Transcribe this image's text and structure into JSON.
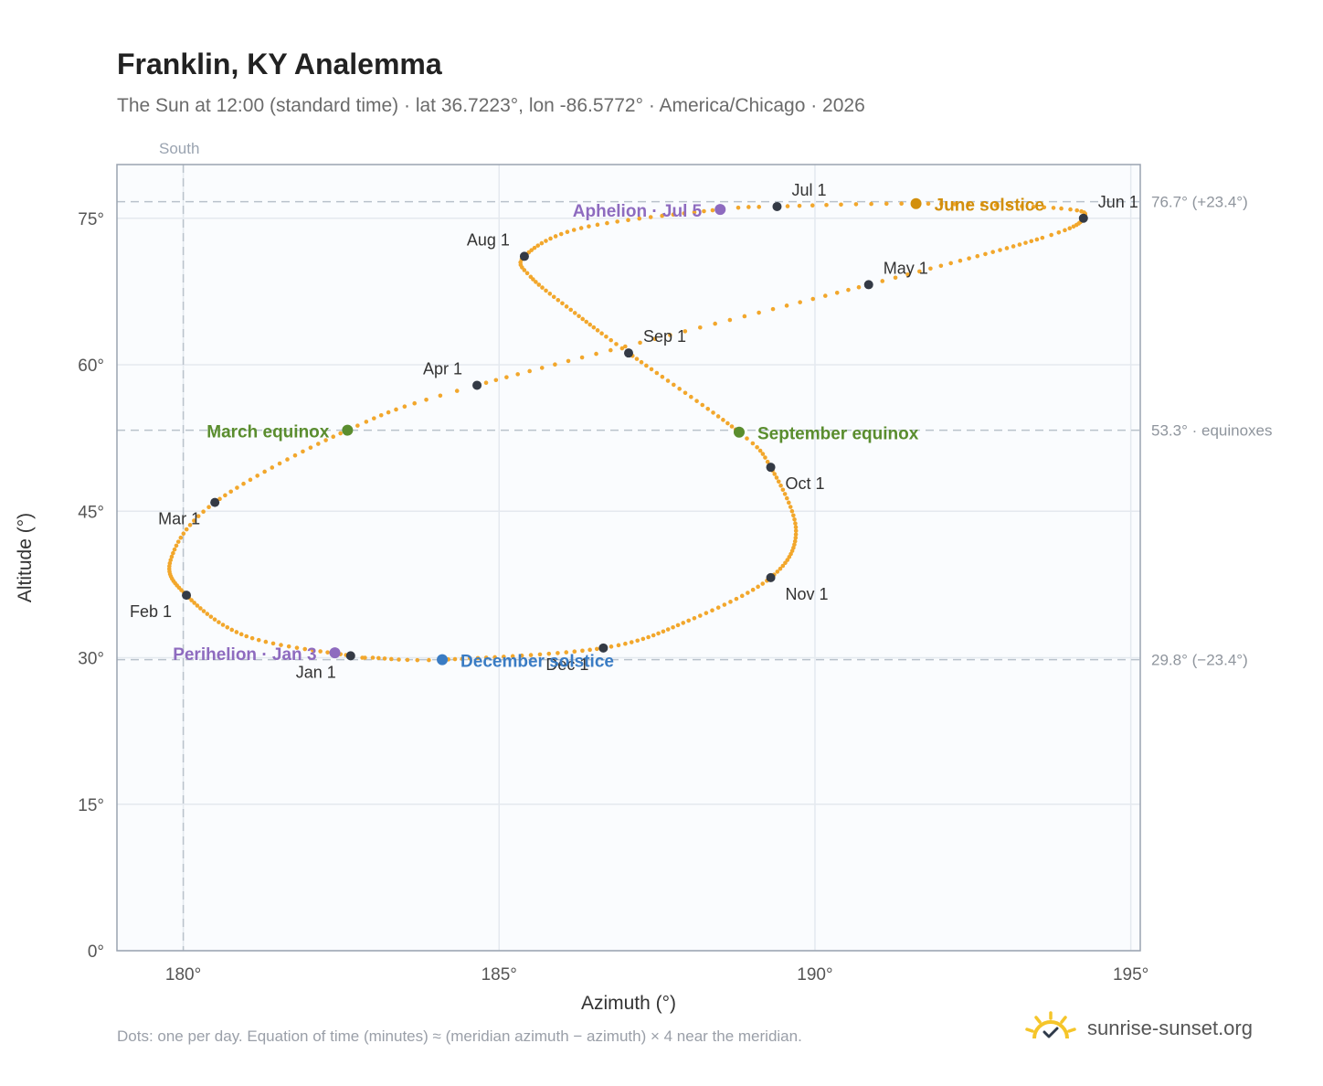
{
  "title": "Franklin, KY Analemma",
  "subtitle": "The Sun at 12:00 (standard time) · lat 36.7223°, lon -86.5772° · America/Chicago · 2026",
  "footnote": "Dots: one per day. Equation of time (minutes) ≈ (meridian azimuth − azimuth) × 4 near the meridian.",
  "brand": {
    "name": "sunrise-sunset.org",
    "icon": "sun-logo-icon"
  },
  "colors": {
    "path": "#f2a72c",
    "month_marker": "#343a45",
    "equinox": "#5a8d2e",
    "june_solstice": "#d28f0c",
    "december_solstice": "#3a7cc4",
    "apsis": "#8e6bbf",
    "grid": "#e4e9ef",
    "plot_bg": "#fafcfe",
    "frame": "#9aa3b0",
    "reference_line": "#b9c2cb"
  },
  "chart_data": {
    "type": "scatter",
    "xlabel": "Azimuth (°)",
    "ylabel": "Altitude (°)",
    "xlim": [
      178.95,
      195.15
    ],
    "ylim": [
      0,
      80.5
    ],
    "xticks": [
      180,
      185,
      190,
      195
    ],
    "yticks": [
      0,
      15,
      30,
      45,
      60,
      75
    ],
    "x_tick_labels": [
      "180°",
      "185°",
      "190°",
      "195°"
    ],
    "y_tick_labels": [
      "0°",
      "15°",
      "30°",
      "45°",
      "60°",
      "75°"
    ],
    "grid": true,
    "south_line": {
      "x": 180,
      "label": "South"
    },
    "reference_lines": [
      {
        "y": 76.7,
        "label": "76.7° (+23.4°)"
      },
      {
        "y": 53.3,
        "label": "53.3° · equinoxes"
      },
      {
        "y": 29.8,
        "label": "29.8° (−23.4°)"
      }
    ],
    "path_keypoints": [
      {
        "day": 1,
        "az": 182.65,
        "alt": 30.2
      },
      {
        "day": 16,
        "az": 181.0,
        "alt": 32.2
      },
      {
        "day": 32,
        "az": 180.05,
        "alt": 36.4
      },
      {
        "day": 46,
        "az": 179.8,
        "alt": 40.0
      },
      {
        "day": 60,
        "az": 180.5,
        "alt": 45.9
      },
      {
        "day": 79,
        "az": 182.6,
        "alt": 53.3
      },
      {
        "day": 91,
        "az": 184.65,
        "alt": 57.9
      },
      {
        "day": 121,
        "az": 190.85,
        "alt": 68.2
      },
      {
        "day": 141,
        "az": 193.6,
        "alt": 73.0
      },
      {
        "day": 152,
        "az": 194.25,
        "alt": 75.0
      },
      {
        "day": 160,
        "az": 193.9,
        "alt": 76.0
      },
      {
        "day": 172,
        "az": 191.6,
        "alt": 76.5
      },
      {
        "day": 182,
        "az": 189.4,
        "alt": 76.2
      },
      {
        "day": 186,
        "az": 188.5,
        "alt": 75.9
      },
      {
        "day": 200,
        "az": 186.3,
        "alt": 74.0
      },
      {
        "day": 213,
        "az": 185.4,
        "alt": 71.1
      },
      {
        "day": 220,
        "az": 185.5,
        "alt": 69.0
      },
      {
        "day": 232,
        "az": 186.2,
        "alt": 65.3
      },
      {
        "day": 244,
        "az": 187.05,
        "alt": 61.2
      },
      {
        "day": 266,
        "az": 188.8,
        "alt": 53.1
      },
      {
        "day": 274,
        "az": 189.3,
        "alt": 49.5
      },
      {
        "day": 290,
        "az": 189.7,
        "alt": 43.0
      },
      {
        "day": 305,
        "az": 189.3,
        "alt": 38.2
      },
      {
        "day": 320,
        "az": 188.0,
        "alt": 33.8
      },
      {
        "day": 335,
        "az": 186.65,
        "alt": 31.0
      },
      {
        "day": 355,
        "az": 184.1,
        "alt": 29.8
      },
      {
        "day": 363,
        "az": 183.0,
        "alt": 30.0
      },
      {
        "day": 366,
        "az": 182.65,
        "alt": 30.2
      }
    ],
    "month_markers": [
      {
        "label": "Jan 1",
        "az": 182.65,
        "alt": 30.2,
        "anchor": "end",
        "dx": -16,
        "dy": 24
      },
      {
        "label": "Feb 1",
        "az": 180.05,
        "alt": 36.4,
        "anchor": "end",
        "dx": -16,
        "dy": 24
      },
      {
        "label": "Mar 1",
        "az": 180.5,
        "alt": 45.9,
        "anchor": "end",
        "dx": -16,
        "dy": 24
      },
      {
        "label": "Apr 1",
        "az": 184.65,
        "alt": 57.9,
        "anchor": "end",
        "dx": -16,
        "dy": -12
      },
      {
        "label": "May 1",
        "az": 190.85,
        "alt": 68.2,
        "anchor": "start",
        "dx": 16,
        "dy": -12
      },
      {
        "label": "Jun 1",
        "az": 194.25,
        "alt": 75.0,
        "anchor": "start",
        "dx": 16,
        "dy": -12
      },
      {
        "label": "Jul 1",
        "az": 189.4,
        "alt": 76.2,
        "anchor": "start",
        "dx": 16,
        "dy": -12
      },
      {
        "label": "Aug 1",
        "az": 185.4,
        "alt": 71.1,
        "anchor": "end",
        "dx": -16,
        "dy": -12
      },
      {
        "label": "Sep 1",
        "az": 187.05,
        "alt": 61.2,
        "anchor": "start",
        "dx": 16,
        "dy": -12
      },
      {
        "label": "Oct 1",
        "az": 189.3,
        "alt": 49.5,
        "anchor": "start",
        "dx": 16,
        "dy": 24
      },
      {
        "label": "Nov 1",
        "az": 189.3,
        "alt": 38.2,
        "anchor": "start",
        "dx": 16,
        "dy": 24
      },
      {
        "label": "Dec 1",
        "az": 186.65,
        "alt": 31.0,
        "anchor": "end",
        "dx": -16,
        "dy": 24
      }
    ],
    "events": [
      {
        "label": "March equinox",
        "az": 182.6,
        "alt": 53.3,
        "color_key": "equinox",
        "anchor": "end",
        "dx": -20,
        "dy": 8
      },
      {
        "label": "September equinox",
        "az": 188.8,
        "alt": 53.1,
        "color_key": "equinox",
        "anchor": "start",
        "dx": 20,
        "dy": 8
      },
      {
        "label": "June solstice",
        "az": 191.6,
        "alt": 76.5,
        "color_key": "june_solstice",
        "anchor": "start",
        "dx": 20,
        "dy": 8
      },
      {
        "label": "December solstice",
        "az": 184.1,
        "alt": 29.8,
        "color_key": "december_solstice",
        "anchor": "start",
        "dx": 20,
        "dy": 8
      },
      {
        "label": "Perihelion · Jan 3",
        "az": 182.4,
        "alt": 30.5,
        "color_key": "apsis",
        "anchor": "end",
        "dx": -20,
        "dy": 8
      },
      {
        "label": "Aphelion · Jul 5",
        "az": 188.5,
        "alt": 75.9,
        "color_key": "apsis",
        "anchor": "end",
        "dx": -20,
        "dy": 8
      }
    ]
  }
}
